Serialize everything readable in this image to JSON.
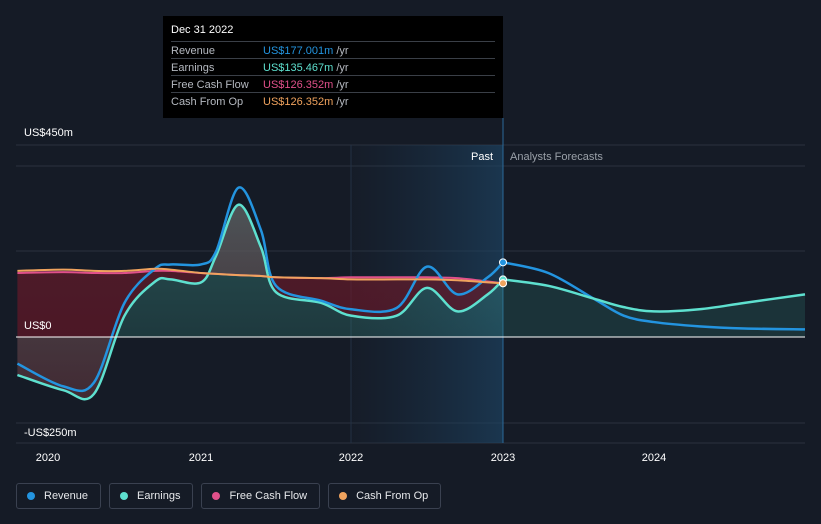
{
  "tooltip": {
    "date": "Dec 31 2022",
    "rows": [
      {
        "label": "Revenue",
        "value": "US$177.001m",
        "unit": "/yr",
        "color": "#2394df"
      },
      {
        "label": "Earnings",
        "value": "US$135.467m",
        "unit": "/yr",
        "color": "#5ee0cf"
      },
      {
        "label": "Free Cash Flow",
        "value": "US$126.352m",
        "unit": "/yr",
        "color": "#e0508a"
      },
      {
        "label": "Cash From Op",
        "value": "US$126.352m",
        "unit": "/yr",
        "color": "#f0a35e"
      }
    ]
  },
  "chart_data": {
    "type": "area",
    "x_tick_labels": [
      "2020",
      "2021",
      "2022",
      "2023",
      "2024"
    ],
    "y_tick_labels": [
      "US$450m",
      "US$0",
      "-US$250m"
    ],
    "ylim": [
      -250,
      450
    ],
    "xlim": [
      2019.8,
      2025.0
    ],
    "past_label": "Past",
    "forecast_label": "Analysts Forecasts",
    "past_end": 2023.0,
    "colors": {
      "revenue": "#2394df",
      "earnings": "#5ee0cf",
      "free_cash_flow": "#e0508a",
      "cash_from_op": "#f0a35e",
      "background": "#151b26",
      "forecast_band": "#1a3a55"
    },
    "series": [
      {
        "name": "Revenue",
        "x": [
          2019.8,
          2020.1,
          2020.3,
          2020.5,
          2020.7,
          2020.8,
          2021.0,
          2021.1,
          2021.25,
          2021.4,
          2021.5,
          2021.8,
          2022.0,
          2022.3,
          2022.5,
          2022.7,
          2022.9,
          2023.0
        ],
        "y": [
          -70,
          -130,
          -120,
          80,
          160,
          170,
          170,
          200,
          350,
          250,
          120,
          85,
          65,
          68,
          165,
          100,
          140,
          175
        ]
      },
      {
        "name": "Earnings",
        "x": [
          2019.8,
          2020.1,
          2020.3,
          2020.5,
          2020.7,
          2020.8,
          2021.0,
          2021.1,
          2021.25,
          2021.4,
          2021.5,
          2021.8,
          2022.0,
          2022.3,
          2022.5,
          2022.7,
          2022.9,
          2023.0
        ],
        "y": [
          -100,
          -140,
          -150,
          50,
          130,
          135,
          128,
          190,
          310,
          210,
          105,
          80,
          50,
          50,
          115,
          60,
          100,
          135
        ]
      },
      {
        "name": "Free Cash Flow",
        "x": [
          2019.8,
          2020.1,
          2020.3,
          2020.5,
          2020.7,
          2020.8,
          2021.0,
          2021.1,
          2021.25,
          2021.4,
          2021.5,
          2021.8,
          2022.0,
          2022.3,
          2022.5,
          2022.7,
          2022.9,
          2023.0
        ],
        "y": [
          150,
          152,
          150,
          150,
          155,
          155,
          150,
          148,
          145,
          143,
          140,
          138,
          140,
          140,
          140,
          138,
          130,
          126
        ]
      },
      {
        "name": "Cash From Op",
        "x": [
          2019.8,
          2020.1,
          2020.3,
          2020.5,
          2020.7,
          2020.8,
          2021.0,
          2021.1,
          2021.25,
          2021.4,
          2021.5,
          2021.8,
          2022.0,
          2022.3,
          2022.5,
          2022.7,
          2022.9,
          2023.0
        ],
        "y": [
          155,
          158,
          155,
          155,
          160,
          158,
          150,
          148,
          145,
          143,
          140,
          138,
          135,
          135,
          135,
          133,
          128,
          126
        ]
      },
      {
        "name": "Revenue forecast",
        "x": [
          2023.0,
          2023.3,
          2023.6,
          2023.8,
          2024.0,
          2024.3,
          2024.6,
          2025.0
        ],
        "y": [
          175,
          150,
          90,
          50,
          35,
          25,
          20,
          18
        ]
      },
      {
        "name": "Earnings forecast",
        "x": [
          2023.0,
          2023.3,
          2023.6,
          2023.8,
          2024.0,
          2024.3,
          2024.6,
          2025.0
        ],
        "y": [
          135,
          120,
          90,
          70,
          60,
          65,
          80,
          100
        ]
      }
    ]
  },
  "legend": [
    {
      "label": "Revenue",
      "color": "#2394df"
    },
    {
      "label": "Earnings",
      "color": "#5ee0cf"
    },
    {
      "label": "Free Cash Flow",
      "color": "#e0508a"
    },
    {
      "label": "Cash From Op",
      "color": "#f0a35e"
    }
  ]
}
